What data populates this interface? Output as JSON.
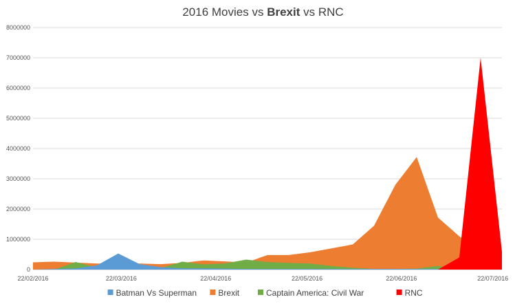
{
  "chart_data": {
    "type": "area",
    "title": {
      "part1": "2016 Movies vs ",
      "part2": "Brexit",
      "part3": " vs RNC"
    },
    "xlabel": "",
    "ylabel": "",
    "ylim": [
      0,
      8000000
    ],
    "y_ticks": [
      "0",
      "1000000",
      "2000000",
      "3000000",
      "4000000",
      "5000000",
      "6000000",
      "7000000",
      "8000000"
    ],
    "x_ticks": [
      "22/02/2016",
      "22/03/2016",
      "22/04/2016",
      "22/05/2016",
      "22/06/2016",
      "22/07/2016"
    ],
    "x": [
      "22/02/2016",
      "29/02/2016",
      "07/03/2016",
      "14/03/2016",
      "21/03/2016",
      "28/03/2016",
      "04/04/2016",
      "11/04/2016",
      "18/04/2016",
      "25/04/2016",
      "02/05/2016",
      "09/05/2016",
      "16/05/2016",
      "23/05/2016",
      "30/05/2016",
      "06/06/2016",
      "13/06/2016",
      "20/06/2016",
      "27/06/2016",
      "04/07/2016",
      "11/07/2016",
      "18/07/2016",
      "25/07/2016"
    ],
    "grid": true,
    "legend_position": "bottom",
    "series": [
      {
        "name": "Brexit",
        "color": "#ed7d31",
        "values": [
          240000,
          260000,
          230000,
          200000,
          200000,
          200000,
          180000,
          220000,
          300000,
          270000,
          230000,
          480000,
          480000,
          570000,
          700000,
          830000,
          1450000,
          2800000,
          3720000,
          1720000,
          1100000,
          600000,
          450000
        ]
      },
      {
        "name": "Captain America: Civil War",
        "color": "#70ad47",
        "values": [
          0,
          0,
          250000,
          70000,
          40000,
          20000,
          50000,
          260000,
          170000,
          200000,
          330000,
          250000,
          220000,
          200000,
          120000,
          60000,
          20000,
          20000,
          30000,
          120000,
          0,
          0,
          0
        ]
      },
      {
        "name": "Batman Vs Superman",
        "color": "#5b9bd5",
        "values": [
          0,
          20000,
          40000,
          140000,
          530000,
          180000,
          80000,
          40000,
          40000,
          30000,
          20000,
          20000,
          20000,
          20000,
          20000,
          20000,
          20000,
          20000,
          20000,
          20000,
          20000,
          20000,
          20000
        ]
      },
      {
        "name": "RNC",
        "color": "#ff0000",
        "values": [
          0,
          0,
          0,
          0,
          0,
          0,
          0,
          0,
          0,
          0,
          0,
          0,
          0,
          0,
          0,
          0,
          0,
          0,
          0,
          0,
          400000,
          7000000,
          600000
        ]
      }
    ],
    "legend_order": [
      "Batman Vs Superman",
      "Brexit",
      "Captain America: Civil War",
      "RNC"
    ]
  }
}
